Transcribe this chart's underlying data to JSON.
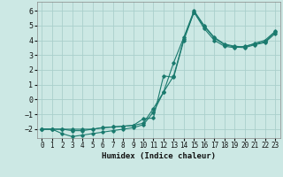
{
  "xlabel": "Humidex (Indice chaleur)",
  "ylabel": "",
  "bg_color": "#cce8e4",
  "grid_color": "#aacfcc",
  "line_color": "#1a7a6e",
  "xlim": [
    -0.5,
    23.5
  ],
  "ylim": [
    -2.6,
    6.6
  ],
  "xticks": [
    0,
    1,
    2,
    3,
    4,
    5,
    6,
    7,
    8,
    9,
    10,
    11,
    12,
    13,
    14,
    15,
    16,
    17,
    18,
    19,
    20,
    21,
    22,
    23
  ],
  "yticks": [
    -2,
    -1,
    0,
    1,
    2,
    3,
    4,
    5,
    6
  ],
  "series": [
    {
      "x": [
        0,
        1,
        2,
        3,
        4,
        5,
        6,
        7,
        8,
        9,
        10,
        11,
        12,
        13,
        14,
        15,
        16,
        17,
        18,
        19,
        20,
        21,
        22,
        23
      ],
      "y": [
        -2.0,
        -2.0,
        -2.0,
        -2.1,
        -2.1,
        -2.0,
        -1.9,
        -1.85,
        -1.8,
        -1.75,
        -1.3,
        -1.25,
        1.6,
        1.5,
        4.0,
        5.9,
        4.8,
        4.0,
        3.6,
        3.5,
        3.6,
        3.75,
        3.9,
        4.55
      ]
    },
    {
      "x": [
        0,
        1,
        2,
        3,
        4,
        5,
        6,
        7,
        8,
        9,
        10,
        11,
        12,
        13,
        14,
        15,
        16,
        17,
        18,
        19,
        20,
        21,
        22,
        23
      ],
      "y": [
        -2.0,
        -2.0,
        -2.3,
        -2.5,
        -2.4,
        -2.3,
        -2.2,
        -2.1,
        -2.0,
        -1.9,
        -1.7,
        -0.85,
        0.5,
        1.6,
        4.1,
        5.9,
        4.95,
        4.15,
        3.7,
        3.55,
        3.5,
        3.7,
        3.85,
        4.45
      ]
    },
    {
      "x": [
        0,
        1,
        2,
        3,
        4,
        5,
        6,
        7,
        8,
        9,
        10,
        11,
        12,
        13,
        14,
        15,
        16,
        17,
        18,
        19,
        20,
        21,
        22,
        23
      ],
      "y": [
        -2.0,
        -2.0,
        -2.0,
        -2.0,
        -2.0,
        -2.0,
        -1.9,
        -1.85,
        -1.8,
        -1.75,
        -1.6,
        -0.6,
        0.5,
        2.5,
        4.2,
        6.0,
        5.0,
        4.2,
        3.75,
        3.6,
        3.55,
        3.8,
        4.0,
        4.6
      ]
    }
  ]
}
